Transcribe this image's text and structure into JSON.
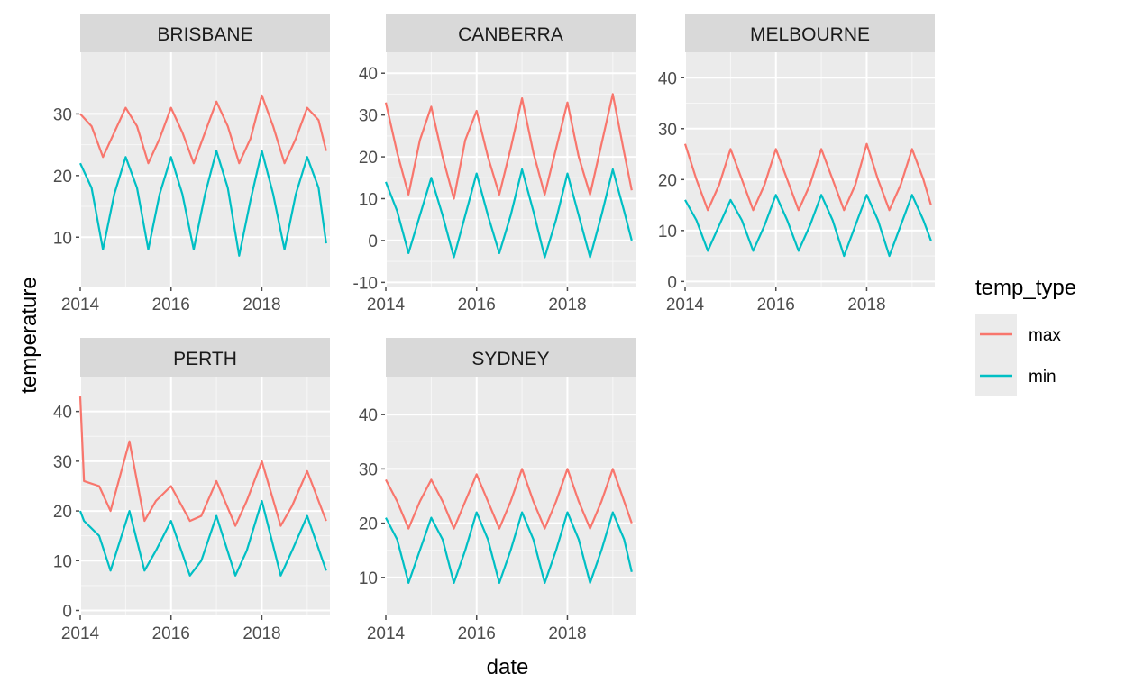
{
  "chart_data": {
    "type": "line",
    "xlabel": "date",
    "ylabel": "temperature",
    "x_ticks": [
      "2014",
      "2016",
      "2018"
    ],
    "legend": {
      "title": "temp_type",
      "position": "right",
      "entries": [
        {
          "name": "max",
          "color": "#F8766D"
        },
        {
          "name": "min",
          "color": "#00BFC4"
        }
      ]
    },
    "grid": true,
    "panels": [
      {
        "name": "BRISBANE",
        "ylim": [
          2,
          40
        ],
        "y_ticks": [
          10,
          20,
          30
        ],
        "series": [
          {
            "name": "max",
            "color": "#F8766D",
            "x": [
              "2014-01",
              "2014-04",
              "2014-07",
              "2014-10",
              "2015-01",
              "2015-04",
              "2015-07",
              "2015-10",
              "2016-01",
              "2016-04",
              "2016-07",
              "2016-10",
              "2017-01",
              "2017-04",
              "2017-07",
              "2017-10",
              "2018-01",
              "2018-04",
              "2018-07",
              "2018-10",
              "2019-01",
              "2019-04",
              "2019-06"
            ],
            "values": [
              30,
              28,
              23,
              27,
              31,
              28,
              22,
              26,
              31,
              27,
              22,
              27,
              32,
              28,
              22,
              26,
              33,
              28,
              22,
              26,
              31,
              29,
              24
            ]
          },
          {
            "name": "min",
            "color": "#00BFC4",
            "x": [
              "2014-01",
              "2014-04",
              "2014-07",
              "2014-10",
              "2015-01",
              "2015-04",
              "2015-07",
              "2015-10",
              "2016-01",
              "2016-04",
              "2016-07",
              "2016-10",
              "2017-01",
              "2017-04",
              "2017-07",
              "2017-10",
              "2018-01",
              "2018-04",
              "2018-07",
              "2018-10",
              "2019-01",
              "2019-04",
              "2019-06"
            ],
            "values": [
              22,
              18,
              8,
              17,
              23,
              18,
              8,
              17,
              23,
              17,
              8,
              17,
              24,
              18,
              7,
              16,
              24,
              17,
              8,
              17,
              23,
              18,
              9
            ]
          }
        ]
      },
      {
        "name": "CANBERRA",
        "ylim": [
          -11,
          45
        ],
        "y_ticks": [
          -10,
          0,
          10,
          20,
          30,
          40
        ],
        "series": [
          {
            "name": "max",
            "color": "#F8766D",
            "x": [
              "2014-01",
              "2014-04",
              "2014-07",
              "2014-10",
              "2015-01",
              "2015-04",
              "2015-07",
              "2015-10",
              "2016-01",
              "2016-04",
              "2016-07",
              "2016-10",
              "2017-01",
              "2017-04",
              "2017-07",
              "2017-10",
              "2018-01",
              "2018-04",
              "2018-07",
              "2018-10",
              "2019-01",
              "2019-04",
              "2019-06"
            ],
            "values": [
              33,
              21,
              11,
              24,
              32,
              20,
              10,
              24,
              31,
              20,
              11,
              22,
              34,
              21,
              11,
              22,
              33,
              20,
              11,
              23,
              35,
              21,
              12
            ]
          },
          {
            "name": "min",
            "color": "#00BFC4",
            "x": [
              "2014-01",
              "2014-04",
              "2014-07",
              "2014-10",
              "2015-01",
              "2015-04",
              "2015-07",
              "2015-10",
              "2016-01",
              "2016-04",
              "2016-07",
              "2016-10",
              "2017-01",
              "2017-04",
              "2017-07",
              "2017-10",
              "2018-01",
              "2018-04",
              "2018-07",
              "2018-10",
              "2019-01",
              "2019-04",
              "2019-06"
            ],
            "values": [
              14,
              7,
              -3,
              6,
              15,
              6,
              -4,
              6,
              16,
              6,
              -3,
              6,
              17,
              7,
              -4,
              5,
              16,
              6,
              -4,
              6,
              17,
              7,
              0
            ]
          }
        ]
      },
      {
        "name": "MELBOURNE",
        "ylim": [
          -1,
          45
        ],
        "y_ticks": [
          0,
          10,
          20,
          30,
          40
        ],
        "series": [
          {
            "name": "max",
            "color": "#F8766D",
            "x": [
              "2014-01",
              "2014-04",
              "2014-07",
              "2014-10",
              "2015-01",
              "2015-04",
              "2015-07",
              "2015-10",
              "2016-01",
              "2016-04",
              "2016-07",
              "2016-10",
              "2017-01",
              "2017-04",
              "2017-07",
              "2017-10",
              "2018-01",
              "2018-04",
              "2018-07",
              "2018-10",
              "2019-01",
              "2019-04",
              "2019-06"
            ],
            "values": [
              27,
              20,
              14,
              19,
              26,
              20,
              14,
              19,
              26,
              20,
              14,
              19,
              26,
              20,
              14,
              19,
              27,
              20,
              14,
              19,
              26,
              20,
              15
            ]
          },
          {
            "name": "min",
            "color": "#00BFC4",
            "x": [
              "2014-01",
              "2014-04",
              "2014-07",
              "2014-10",
              "2015-01",
              "2015-04",
              "2015-07",
              "2015-10",
              "2016-01",
              "2016-04",
              "2016-07",
              "2016-10",
              "2017-01",
              "2017-04",
              "2017-07",
              "2017-10",
              "2018-01",
              "2018-04",
              "2018-07",
              "2018-10",
              "2019-01",
              "2019-04",
              "2019-06"
            ],
            "values": [
              16,
              12,
              6,
              11,
              16,
              12,
              6,
              11,
              17,
              12,
              6,
              11,
              17,
              12,
              5,
              11,
              17,
              12,
              5,
              11,
              17,
              12,
              8
            ]
          }
        ]
      },
      {
        "name": "PERTH",
        "ylim": [
          -1,
          47
        ],
        "y_ticks": [
          0,
          10,
          20,
          30,
          40
        ],
        "series": [
          {
            "name": "max",
            "color": "#F8766D",
            "x": [
              "2014-01",
              "2014-02",
              "2014-06",
              "2014-09",
              "2015-02",
              "2015-06",
              "2015-09",
              "2016-01",
              "2016-06",
              "2016-09",
              "2017-01",
              "2017-06",
              "2017-09",
              "2018-01",
              "2018-06",
              "2018-09",
              "2019-01",
              "2019-06"
            ],
            "values": [
              43,
              26,
              25,
              20,
              34,
              18,
              22,
              25,
              18,
              19,
              26,
              17,
              22,
              30,
              17,
              21,
              28,
              18
            ]
          },
          {
            "name": "min",
            "color": "#00BFC4",
            "x": [
              "2014-01",
              "2014-02",
              "2014-06",
              "2014-09",
              "2015-02",
              "2015-06",
              "2015-09",
              "2016-01",
              "2016-06",
              "2016-09",
              "2017-01",
              "2017-06",
              "2017-09",
              "2018-01",
              "2018-06",
              "2018-09",
              "2019-01",
              "2019-06"
            ],
            "values": [
              20,
              18,
              15,
              8,
              20,
              8,
              12,
              18,
              7,
              10,
              19,
              7,
              12,
              22,
              7,
              12,
              19,
              8
            ]
          }
        ]
      },
      {
        "name": "SYDNEY",
        "ylim": [
          3,
          47
        ],
        "y_ticks": [
          10,
          20,
          30,
          40
        ],
        "series": [
          {
            "name": "max",
            "color": "#F8766D",
            "x": [
              "2014-01",
              "2014-04",
              "2014-07",
              "2014-10",
              "2015-01",
              "2015-04",
              "2015-07",
              "2015-10",
              "2016-01",
              "2016-04",
              "2016-07",
              "2016-10",
              "2017-01",
              "2017-04",
              "2017-07",
              "2017-10",
              "2018-01",
              "2018-04",
              "2018-07",
              "2018-10",
              "2019-01",
              "2019-04",
              "2019-06"
            ],
            "values": [
              28,
              24,
              19,
              24,
              28,
              24,
              19,
              24,
              29,
              24,
              19,
              24,
              30,
              24,
              19,
              24,
              30,
              24,
              19,
              24,
              30,
              24,
              20
            ]
          },
          {
            "name": "min",
            "color": "#00BFC4",
            "x": [
              "2014-01",
              "2014-04",
              "2014-07",
              "2014-10",
              "2015-01",
              "2015-04",
              "2015-07",
              "2015-10",
              "2016-01",
              "2016-04",
              "2016-07",
              "2016-10",
              "2017-01",
              "2017-04",
              "2017-07",
              "2017-10",
              "2018-01",
              "2018-04",
              "2018-07",
              "2018-10",
              "2019-01",
              "2019-04",
              "2019-06"
            ],
            "values": [
              21,
              17,
              9,
              15,
              21,
              17,
              9,
              15,
              22,
              17,
              9,
              15,
              22,
              17,
              9,
              15,
              22,
              17,
              9,
              15,
              22,
              17,
              11
            ]
          }
        ]
      }
    ]
  }
}
